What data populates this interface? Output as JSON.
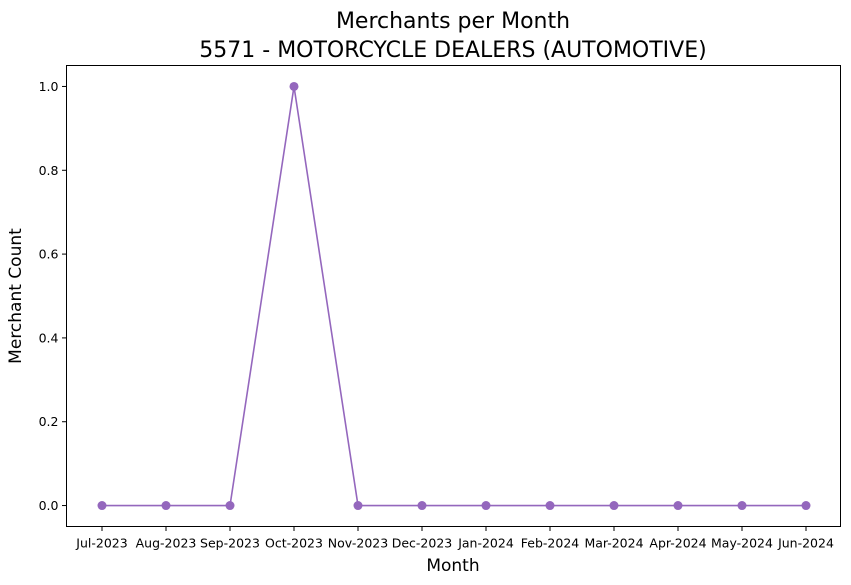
{
  "chart_data": {
    "type": "line",
    "title": "Merchants per Month",
    "subtitle": "5571 - MOTORCYCLE DEALERS (AUTOMOTIVE)",
    "xlabel": "Month",
    "ylabel": "Merchant Count",
    "categories": [
      "Jul-2023",
      "Aug-2023",
      "Sep-2023",
      "Oct-2023",
      "Nov-2023",
      "Dec-2023",
      "Jan-2024",
      "Feb-2024",
      "Mar-2024",
      "Apr-2024",
      "May-2024",
      "Jun-2024"
    ],
    "series": [
      {
        "values": [
          0,
          0,
          0,
          1,
          0,
          0,
          0,
          0,
          0,
          0,
          0,
          0
        ],
        "color": "#9467bd",
        "marker": "circle"
      }
    ],
    "yticks": [
      "0.0",
      "0.2",
      "0.4",
      "0.6",
      "0.8",
      "1.0"
    ],
    "ylim": [
      -0.05,
      1.05
    ],
    "grid": false,
    "legend": "none"
  }
}
